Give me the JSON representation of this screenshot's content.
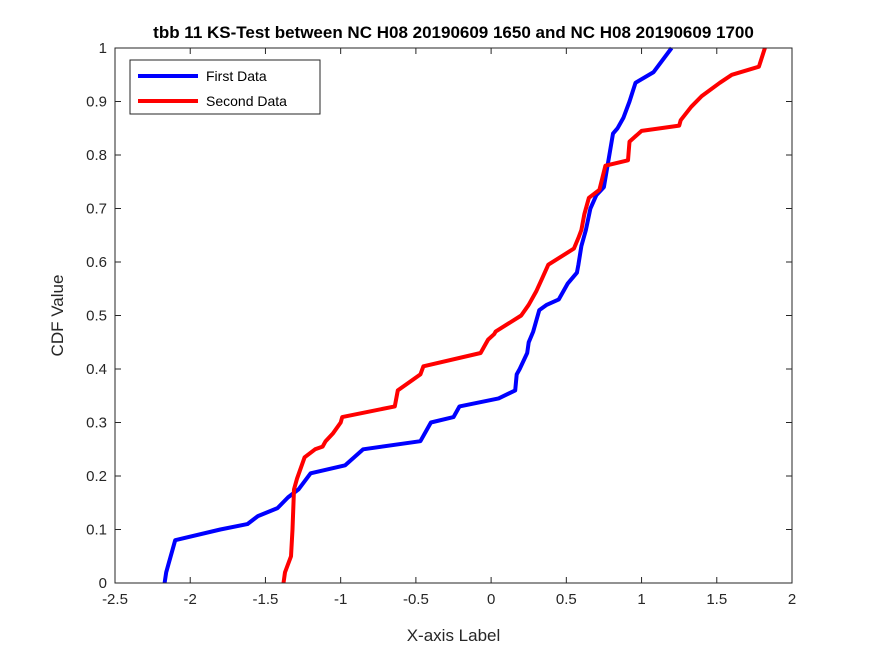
{
  "chart_data": {
    "type": "line",
    "title": "tbb 11 KS-Test between NC H08 20190609 1650 and NC H08 20190609 1700",
    "xlabel": "X-axis Label",
    "ylabel": "CDF Value",
    "xlim": [
      -2.5,
      2
    ],
    "ylim": [
      0,
      1
    ],
    "xticks": [
      "-2.5",
      "-2",
      "-1.5",
      "-1",
      "-0.5",
      "0",
      "0.5",
      "1",
      "1.5",
      "2"
    ],
    "yticks": [
      "0",
      "0.1",
      "0.2",
      "0.3",
      "0.4",
      "0.5",
      "0.6",
      "0.7",
      "0.8",
      "0.9",
      "1"
    ],
    "grid": false,
    "legend_position": "top-left",
    "series": [
      {
        "name": "First Data",
        "color": "#0000ff",
        "x": [
          -2.17,
          -2.16,
          -2.14,
          -2.12,
          -2.1,
          -1.8,
          -1.62,
          -1.55,
          -1.42,
          -1.35,
          -1.28,
          -1.2,
          -0.97,
          -0.85,
          -0.47,
          -0.4,
          -0.25,
          -0.21,
          0.05,
          0.16,
          0.17,
          0.19,
          0.24,
          0.25,
          0.28,
          0.32,
          0.37,
          0.45,
          0.51,
          0.57,
          0.58,
          0.6,
          0.63,
          0.66,
          0.7,
          0.75,
          0.81,
          0.84,
          0.88,
          0.92,
          0.96,
          1.08,
          1.2
        ],
        "y": [
          0,
          0.02,
          0.04,
          0.06,
          0.08,
          0.1,
          0.11,
          0.125,
          0.14,
          0.16,
          0.175,
          0.205,
          0.22,
          0.25,
          0.265,
          0.3,
          0.31,
          0.33,
          0.345,
          0.36,
          0.39,
          0.4,
          0.43,
          0.45,
          0.47,
          0.51,
          0.52,
          0.53,
          0.56,
          0.58,
          0.595,
          0.63,
          0.66,
          0.7,
          0.725,
          0.74,
          0.84,
          0.85,
          0.87,
          0.9,
          0.935,
          0.955,
          1.0
        ]
      },
      {
        "name": "Second Data",
        "color": "#ff0000",
        "x": [
          -1.38,
          -1.37,
          -1.33,
          -1.32,
          -1.31,
          -1.29,
          -1.24,
          -1.17,
          -1.12,
          -1.1,
          -1.05,
          -1.0,
          -0.99,
          -0.64,
          -0.62,
          -0.47,
          -0.45,
          -0.07,
          -0.05,
          -0.02,
          0.02,
          0.03,
          0.2,
          0.25,
          0.3,
          0.34,
          0.38,
          0.55,
          0.58,
          0.6,
          0.62,
          0.65,
          0.72,
          0.76,
          0.91,
          0.92,
          1.0,
          1.25,
          1.26,
          1.33,
          1.4,
          1.52,
          1.6,
          1.78,
          1.82
        ],
        "y": [
          0,
          0.02,
          0.05,
          0.1,
          0.175,
          0.195,
          0.235,
          0.25,
          0.255,
          0.265,
          0.28,
          0.3,
          0.31,
          0.33,
          0.36,
          0.39,
          0.405,
          0.43,
          0.44,
          0.455,
          0.465,
          0.47,
          0.5,
          0.52,
          0.545,
          0.57,
          0.595,
          0.625,
          0.645,
          0.66,
          0.69,
          0.72,
          0.735,
          0.78,
          0.79,
          0.825,
          0.845,
          0.855,
          0.865,
          0.89,
          0.91,
          0.935,
          0.95,
          0.965,
          1.0
        ]
      }
    ]
  }
}
